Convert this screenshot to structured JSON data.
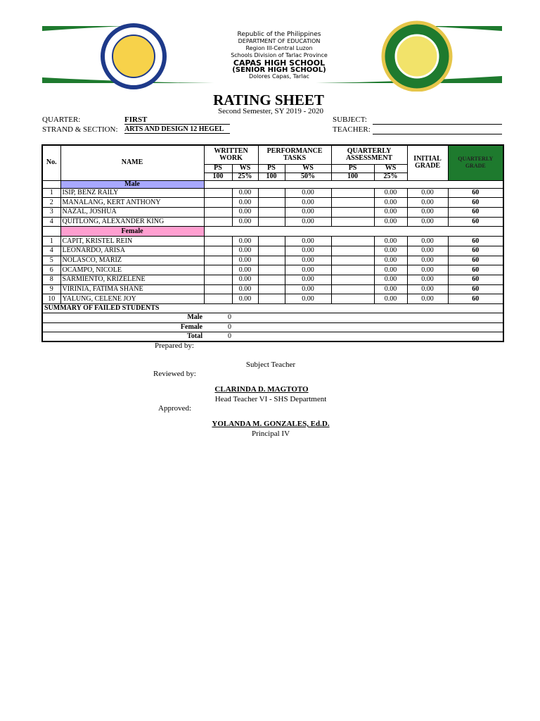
{
  "header": {
    "lines": [
      "Republic of the Philippines",
      "DEPARTMENT OF EDUCATION",
      "Region III-Central Luzon",
      "Schools Division of Tarlac Province",
      "CAPAS HIGH SCHOOL",
      "(SENIOR HIGH SCHOOL)",
      "Dolores Capas, Tarlac"
    ]
  },
  "title": "RATING SHEET",
  "subtitle": "Second Semester,  SY 2019 - 2020",
  "info": {
    "quarter_label": "QUARTER:",
    "quarter": "FIRST",
    "strand_label": "STRAND & SECTION:",
    "strand": "ARTS AND DESIGN 12 HEGEL",
    "subject_label": "SUBJECT:",
    "teacher_label": "TEACHER:"
  },
  "table": {
    "headers": [
      "No.",
      "NAME",
      "WRITTEN WORK",
      "PERFORMANCE TASKS",
      "QUARTERLY ASSESSMENT",
      "INITIAL GRADE",
      "QUARTERLY GRADE"
    ],
    "sub": [
      "PS",
      "WS",
      "PS",
      "WS",
      "PS",
      "WS"
    ],
    "weights": [
      "100",
      "25%",
      "100",
      "50%",
      "100",
      "25%"
    ],
    "groups": [
      {
        "label": "Male",
        "rows": [
          [
            "1",
            "ISIP, BENZ RAILY",
            "0.00",
            "0.00",
            "0.00",
            "0.00",
            "60"
          ],
          [
            "2",
            "MANALANG, KERT ANTHONY",
            "0.00",
            "0.00",
            "0.00",
            "0.00",
            "60"
          ],
          [
            "3",
            "NAZAL, JOSHUA",
            "0.00",
            "0.00",
            "0.00",
            "0.00",
            "60"
          ],
          [
            "4",
            "QUITLONG, ALEXANDER KING",
            "0.00",
            "0.00",
            "0.00",
            "0.00",
            "60"
          ]
        ]
      },
      {
        "label": "Female",
        "rows": [
          [
            "1",
            "CAPIT, KRISTEL REIN",
            "0.00",
            "0.00",
            "0.00",
            "0.00",
            "60"
          ],
          [
            "4",
            "LEONARDO, ARISA",
            "0.00",
            "0.00",
            "0.00",
            "0.00",
            "60"
          ],
          [
            "5",
            "NOLASCO, MARIZ",
            "0.00",
            "0.00",
            "0.00",
            "0.00",
            "60"
          ],
          [
            "6",
            "OCAMPO, NICOLE",
            "0.00",
            "0.00",
            "0.00",
            "0.00",
            "60"
          ],
          [
            "8",
            "SARMIENTO, KRIZELENE",
            "0.00",
            "0.00",
            "0.00",
            "0.00",
            "60"
          ],
          [
            "9",
            "VIRINIA, FATIMA SHANE",
            "0.00",
            "0.00",
            "0.00",
            "0.00",
            "60"
          ],
          [
            "10",
            "YALUNG, CELENE JOY",
            "0.00",
            "0.00",
            "0.00",
            "0.00",
            "60"
          ]
        ]
      }
    ],
    "summary": {
      "title": "SUMMARY OF FAILED STUDENTS",
      "rows": [
        {
          "label": "Male",
          "value": 0
        },
        {
          "label": "Female",
          "value": 0
        },
        {
          "label": "Total",
          "value": 0
        }
      ]
    }
  },
  "signatures": {
    "prepared": "Prepared by:",
    "subject_teacher": "Subject Teacher",
    "reviewed": "Reviewed by:",
    "head_name": "CLARINDA D. MAGTOTO",
    "head_title": "Head Teacher VI - SHS Department",
    "approved": "Approved:",
    "principal_name": "YOLANDA M. GONZALES, Ed.D.",
    "principal_title": "Principal IV"
  }
}
